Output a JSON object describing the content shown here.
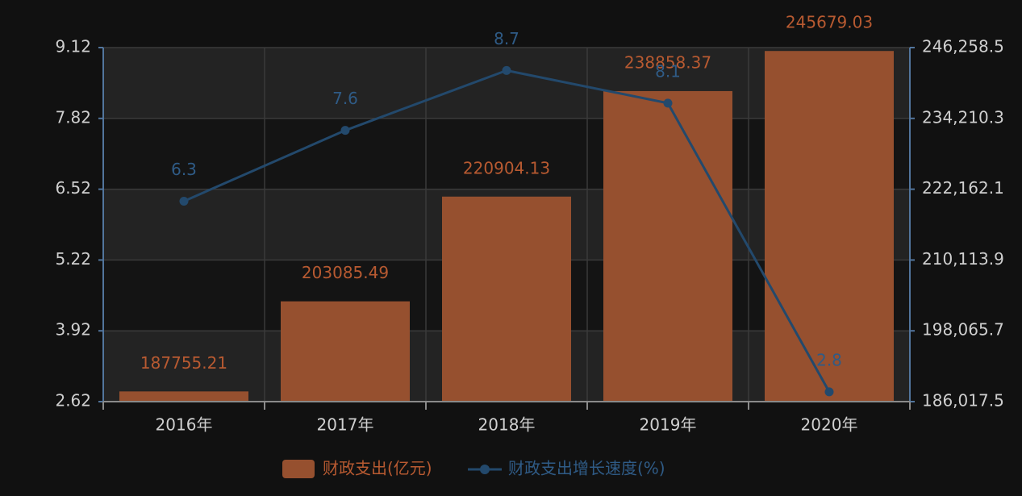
{
  "chart_data": {
    "type": "bar",
    "categories": [
      "2016年",
      "2017年",
      "2018年",
      "2019年",
      "2020年"
    ],
    "series": [
      {
        "name": "财政支出(亿元)",
        "kind": "bar",
        "axis": "right",
        "color": "#96502f",
        "label_color": "#b85a31",
        "values": [
          187755.21,
          203085.49,
          220904.13,
          238858.37,
          245679.03
        ]
      },
      {
        "name": "财政支出增长速度(%)",
        "kind": "line",
        "axis": "left",
        "color": "#23496c",
        "label_color": "#2f5b86",
        "values": [
          6.3,
          7.6,
          8.7,
          8.1,
          2.8
        ]
      }
    ],
    "y_left": {
      "ylim": [
        2.62,
        9.12
      ],
      "ticks": [
        "2.62",
        "3.92",
        "5.22",
        "6.52",
        "7.82",
        "9.12"
      ]
    },
    "y_right": {
      "ylim": [
        186017.5,
        246258.5
      ],
      "ticks": [
        "186,017.5",
        "198,065.7",
        "210,113.9",
        "222,162.1",
        "234,210.3",
        "246,258.5"
      ]
    },
    "grid": true,
    "legend": "bottom-center"
  },
  "colors": {
    "background": "#111111",
    "band_light": "#232323",
    "band_dark": "#141414",
    "grid": "#3a3a3a",
    "side_axis": "#52759c",
    "bottom_axis": "#8a8a8a",
    "tick_text": "#cfcfcf"
  }
}
